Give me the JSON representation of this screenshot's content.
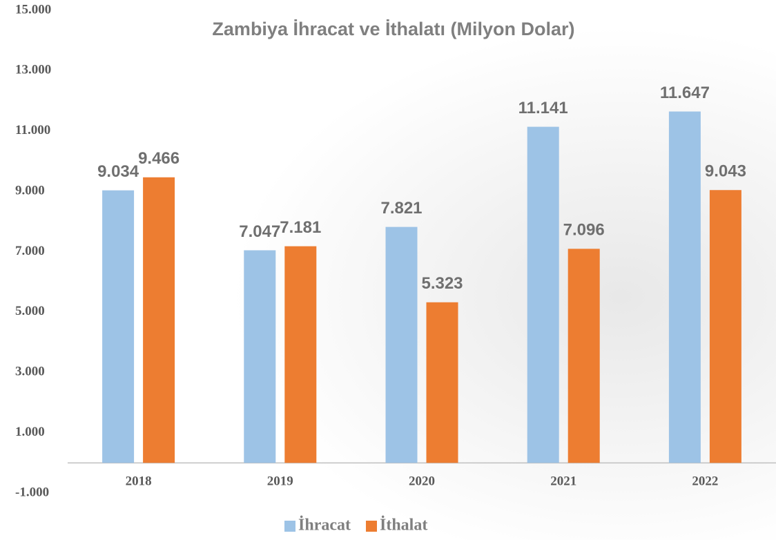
{
  "chart_data": {
    "type": "bar",
    "title": "Zambiya İhracat ve İthalatı (Milyon Dolar)",
    "categories": [
      "2018",
      "2019",
      "2020",
      "2021",
      "2022"
    ],
    "series": [
      {
        "name": "İhracat",
        "color": "#9dc3e6",
        "values": [
          9034,
          7047,
          7821,
          11141,
          11647
        ],
        "value_labels": [
          "9.034",
          "7.047",
          "7.821",
          "11.141",
          "11.647"
        ]
      },
      {
        "name": "İthalat",
        "color": "#ed7d31",
        "values": [
          9466,
          7181,
          5323,
          7096,
          9043
        ],
        "value_labels": [
          "9.466",
          "7.181",
          "5.323",
          "7.096",
          "9.043"
        ]
      }
    ],
    "ylim": [
      -1000,
      15000
    ],
    "yticks": [
      {
        "value": -1000,
        "label": "-1.000"
      },
      {
        "value": 1000,
        "label": "1.000"
      },
      {
        "value": 3000,
        "label": "3.000"
      },
      {
        "value": 5000,
        "label": "5.000"
      },
      {
        "value": 7000,
        "label": "7.000"
      },
      {
        "value": 9000,
        "label": "9.000"
      },
      {
        "value": 11000,
        "label": "11.000"
      },
      {
        "value": 13000,
        "label": "13.000"
      },
      {
        "value": 15000,
        "label": "15.000"
      }
    ],
    "grid": false,
    "legend": "bottom"
  }
}
